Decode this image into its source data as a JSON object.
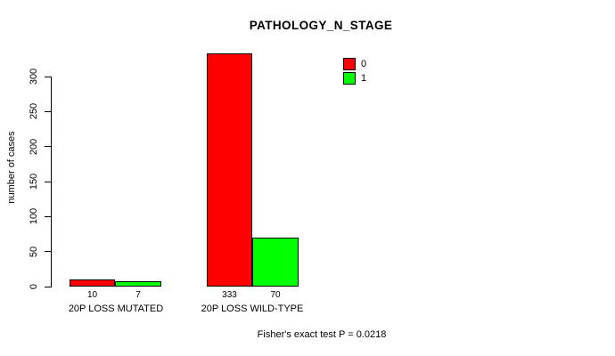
{
  "chart_data": {
    "type": "bar",
    "title": "PATHOLOGY_N_STAGE",
    "ylabel": "number of cases",
    "xlabel": "",
    "categories": [
      "20P LOSS MUTATED",
      "20P LOSS WILD-TYPE"
    ],
    "series": [
      {
        "name": "0",
        "color": "#FF0000",
        "values": [
          10,
          333
        ]
      },
      {
        "name": "1",
        "color": "#00FF00",
        "values": [
          7,
          70
        ]
      }
    ],
    "ylim": [
      0,
      300
    ],
    "yticks": [
      0,
      50,
      100,
      150,
      200,
      250,
      300
    ],
    "grid": false,
    "legend_position": "top-right",
    "bar_border_color": "#000000",
    "footer": "Fisher's exact test P = 0.0218"
  }
}
